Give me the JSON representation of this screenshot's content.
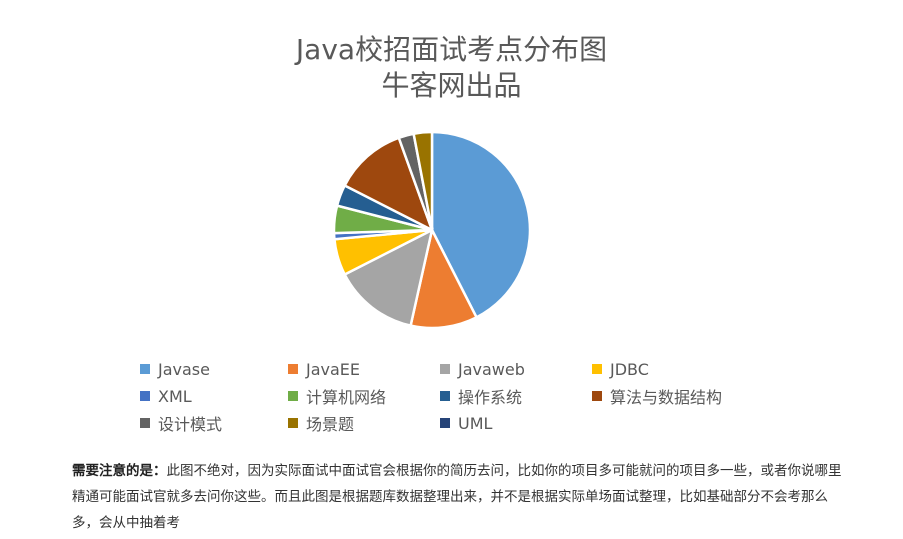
{
  "chart_data": {
    "type": "pie",
    "title": "Java校招面试考点分布图",
    "subtitle": "牛客网出品",
    "categories": [
      "Javase",
      "JavaEE",
      "Javaweb",
      "JDBC",
      "XML",
      "计算机网络",
      "操作系统",
      "算法与数据结构",
      "设计模式",
      "场景题",
      "UML"
    ],
    "values": [
      42.5,
      11,
      14,
      6,
      1,
      4.5,
      3.5,
      12,
      2.5,
      3,
      0
    ],
    "colors": [
      "#5B9BD5",
      "#ED7D31",
      "#A5A5A5",
      "#FFC000",
      "#4472C4",
      "#70AD47",
      "#255E91",
      "#9E480E",
      "#636363",
      "#997300",
      "#264478"
    ],
    "legend_position": "bottom"
  },
  "note": {
    "label": "需要注意的是：",
    "text": "此图不绝对，因为实际面试中面试官会根据你的简历去问，比如你的项目多可能就问的项目多一些，或者你说哪里精通可能面试官就多去问你这些。而且此图是根据题库数据整理出来，并不是根据实际单场面试整理，比如基础部分不会考那么多，会从中抽着考"
  }
}
